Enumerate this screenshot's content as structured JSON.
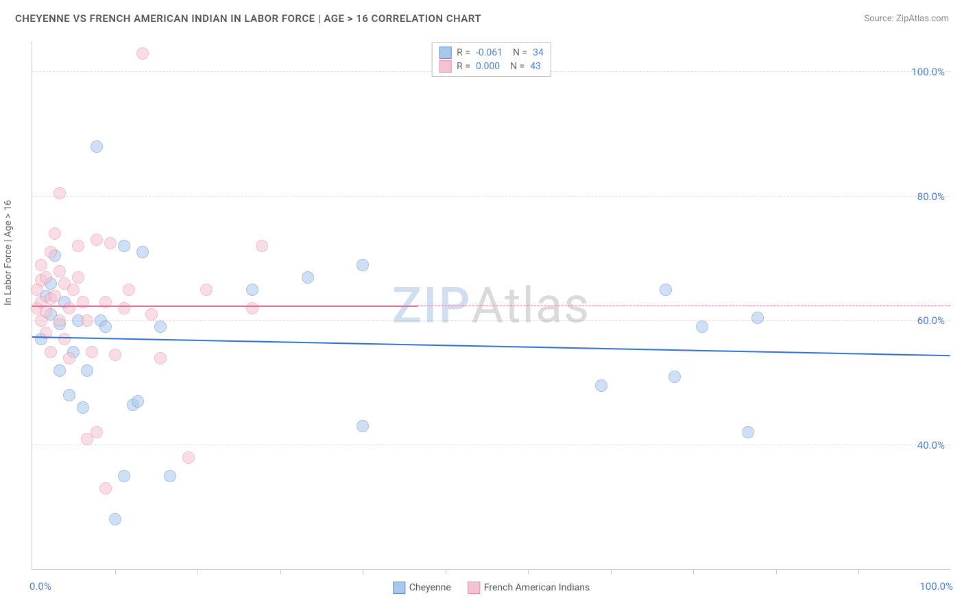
{
  "title": "CHEYENNE VS FRENCH AMERICAN INDIAN IN LABOR FORCE | AGE > 16 CORRELATION CHART",
  "source": "Source: ZipAtlas.com",
  "yaxis_title": "In Labor Force | Age > 16",
  "watermark_a": "ZIP",
  "watermark_b": "Atlas",
  "chart": {
    "type": "scatter",
    "background_color": "#ffffff",
    "xlim": [
      0,
      100
    ],
    "ylim": [
      20,
      105
    ],
    "y_gridlines": [
      40,
      60,
      80,
      100
    ],
    "y_tick_labels": [
      "40.0%",
      "60.0%",
      "80.0%",
      "100.0%"
    ],
    "x_minor_ticks": [
      9,
      18,
      27,
      36,
      45,
      54,
      63,
      72,
      81,
      90
    ],
    "x_tick_labels": {
      "min": "0.0%",
      "max": "100.0%"
    },
    "grid_color": "#dddddd",
    "axis_color": "#cccccc",
    "tick_label_color": "#4a7fd8",
    "marker_radius": 9,
    "marker_opacity": 0.55,
    "series": [
      {
        "name": "Cheyenne",
        "fill": "#a9c7ec",
        "stroke": "#5b8fd6",
        "reg_color": "#2f6fd0",
        "reg_start_y": 57.5,
        "reg_end_y": 54.5,
        "R": "-0.061",
        "N": "34",
        "points": [
          [
            1,
            57
          ],
          [
            1.5,
            64
          ],
          [
            2,
            61
          ],
          [
            2,
            66
          ],
          [
            2.5,
            70.5
          ],
          [
            3,
            52
          ],
          [
            3,
            59.5
          ],
          [
            3.5,
            63
          ],
          [
            4,
            48
          ],
          [
            4.5,
            55
          ],
          [
            5,
            60
          ],
          [
            5.5,
            46
          ],
          [
            6,
            52
          ],
          [
            7,
            88
          ],
          [
            7.5,
            60
          ],
          [
            8,
            59
          ],
          [
            9,
            28
          ],
          [
            10,
            35
          ],
          [
            10,
            72
          ],
          [
            11,
            46.5
          ],
          [
            11.5,
            47
          ],
          [
            12,
            71
          ],
          [
            14,
            59
          ],
          [
            15,
            35
          ],
          [
            24,
            65
          ],
          [
            30,
            67
          ],
          [
            36,
            69
          ],
          [
            36,
            43
          ],
          [
            62,
            49.5
          ],
          [
            69,
            65
          ],
          [
            70,
            51
          ],
          [
            73,
            59
          ],
          [
            78,
            42
          ],
          [
            79,
            60.5
          ]
        ]
      },
      {
        "name": "French American Indians",
        "fill": "#f4c2d0",
        "stroke": "#e98fab",
        "reg_color": "#e76f94",
        "reg_start_y": 62.5,
        "reg_end_x": 42,
        "reg_end_y": 62.5,
        "dash_end_x": 100,
        "R": "0.000",
        "N": "43",
        "points": [
          [
            0.5,
            62
          ],
          [
            0.5,
            65
          ],
          [
            1,
            60
          ],
          [
            1,
            63
          ],
          [
            1,
            66.5
          ],
          [
            1,
            69
          ],
          [
            1.5,
            58
          ],
          [
            1.5,
            61.5
          ],
          [
            1.5,
            67
          ],
          [
            2,
            55
          ],
          [
            2,
            63.5
          ],
          [
            2,
            71
          ],
          [
            2.5,
            64
          ],
          [
            2.5,
            74
          ],
          [
            3,
            60
          ],
          [
            3,
            68
          ],
          [
            3,
            80.5
          ],
          [
            3.5,
            57
          ],
          [
            3.5,
            66
          ],
          [
            4,
            54
          ],
          [
            4,
            62
          ],
          [
            4.5,
            65
          ],
          [
            5,
            67
          ],
          [
            5,
            72
          ],
          [
            5.5,
            63
          ],
          [
            6,
            41
          ],
          [
            6,
            60
          ],
          [
            6.5,
            55
          ],
          [
            7,
            42
          ],
          [
            7,
            73
          ],
          [
            8,
            33
          ],
          [
            8,
            63
          ],
          [
            8.5,
            72.5
          ],
          [
            9,
            54.5
          ],
          [
            10,
            62
          ],
          [
            10.5,
            65
          ],
          [
            12,
            103
          ],
          [
            13,
            61
          ],
          [
            14,
            54
          ],
          [
            17,
            38
          ],
          [
            19,
            65
          ],
          [
            24,
            62
          ],
          [
            25,
            72
          ]
        ]
      }
    ]
  },
  "legend": {
    "series1_label": "Cheyenne",
    "series2_label": "French American Indians"
  }
}
